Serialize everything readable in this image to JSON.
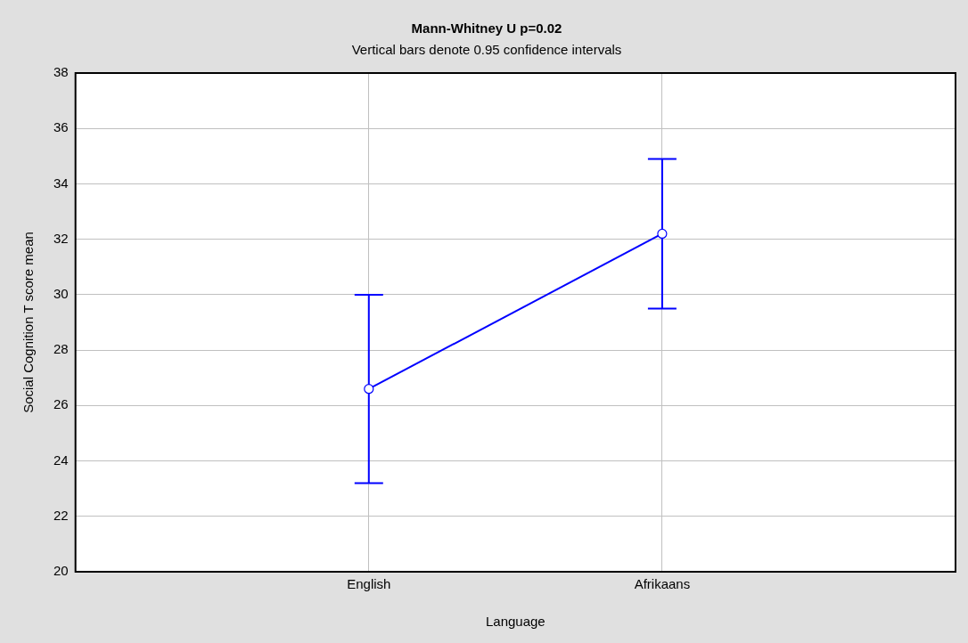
{
  "chart_data": {
    "type": "line",
    "title": "Mann-Whitney U p=0.02",
    "subtitle": "Vertical bars denote 0.95 confidence intervals",
    "xlabel": "Language",
    "ylabel": "Social Cognition T score mean",
    "categories": [
      "English",
      "Afrikaans"
    ],
    "series": [
      {
        "color": "#0000ff",
        "values": [
          26.6,
          32.2
        ],
        "errors": [
          [
            23.2,
            30.0
          ],
          [
            29.5,
            34.9
          ]
        ]
      }
    ],
    "ylim": [
      20,
      38
    ],
    "yticks": [
      20,
      22,
      24,
      26,
      28,
      30,
      32,
      34,
      36,
      38
    ],
    "grid": true,
    "legend": false,
    "marker": "circle",
    "line_style": "solid"
  }
}
